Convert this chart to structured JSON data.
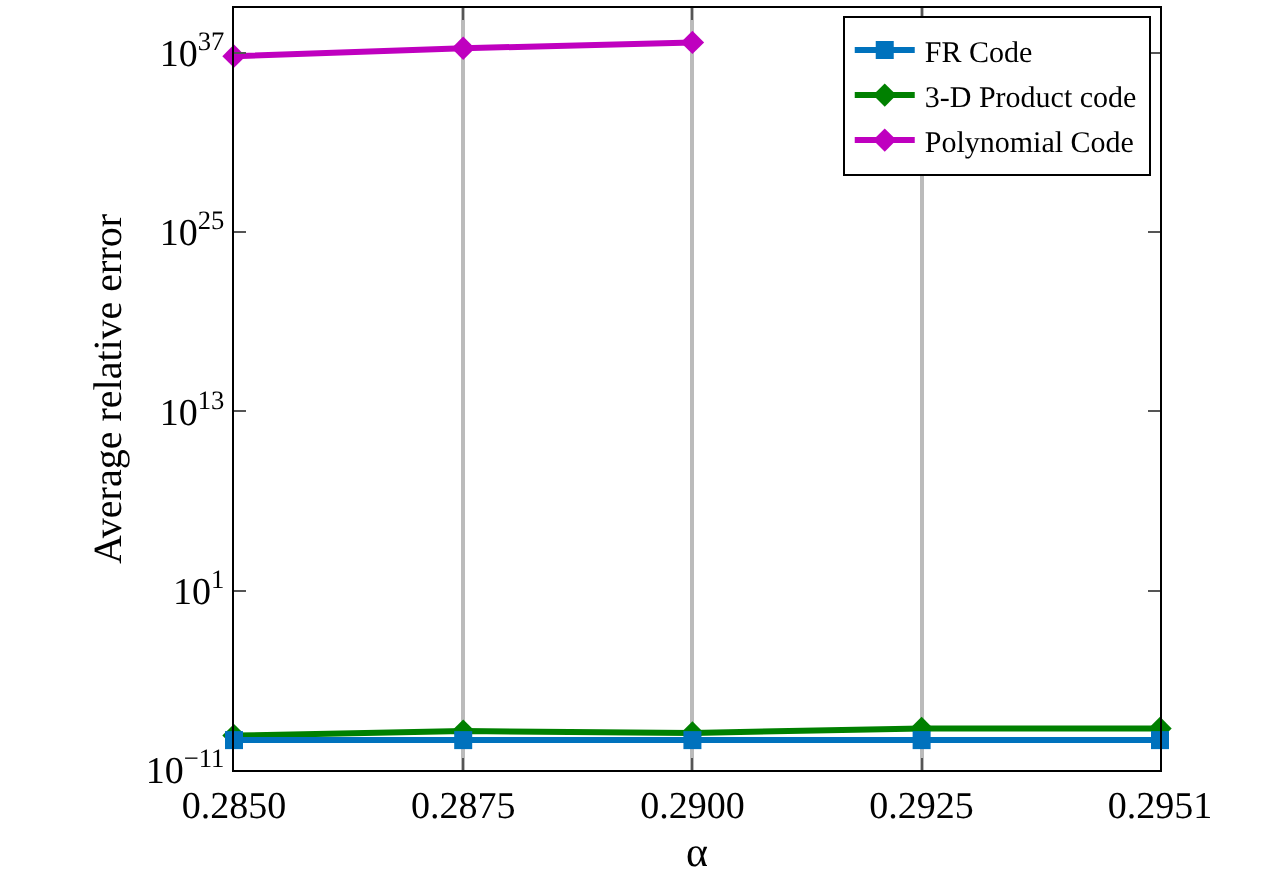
{
  "chart_data": {
    "type": "line",
    "xlabel": "α",
    "ylabel": "Average relative error",
    "log": "y",
    "grid": "x",
    "legend": "top right",
    "line_style": "solid",
    "x": [
      0.285,
      0.2875,
      0.29,
      0.2925,
      0.2951
    ],
    "xlim": [
      0.285,
      0.2951
    ],
    "xticks": [
      {
        "value": 0.285,
        "label": "0.2850"
      },
      0.2875,
      {
        "value": 0.29,
        "label": "0.2900"
      },
      0.2925,
      0.2951
    ],
    "ylim": [
      1e-11,
      1e+40
    ],
    "yticks": [
      {
        "value": 1e-11,
        "label": "10$^{−11}$"
      },
      {
        "value": 10,
        "label": "10$^{1}$"
      },
      {
        "value": 10000000000000.0,
        "label": "10$^{13}$"
      },
      {
        "value": 1e+25,
        "label": "10$^{25}$"
      },
      {
        "value": 1e+37,
        "label": "10$^{37}$"
      }
    ],
    "series": [
      {
        "name": "FR Code",
        "color": "#0072bd",
        "marker": "square",
        "values": [
          1e-09,
          1e-09,
          1e-09,
          1e-09,
          1e-09
        ]
      },
      {
        "name": "3-D Product code",
        "color": "#008000",
        "marker": "diamond",
        "values": [
          2e-09,
          4e-09,
          3e-09,
          6e-09,
          6e-09
        ]
      },
      {
        "name": "Polynomial Code",
        "color": "#bf00bf",
        "marker": "diamond",
        "values": [
          6e+36,
          2e+37,
          5e+37,
          null,
          null
        ]
      }
    ]
  }
}
